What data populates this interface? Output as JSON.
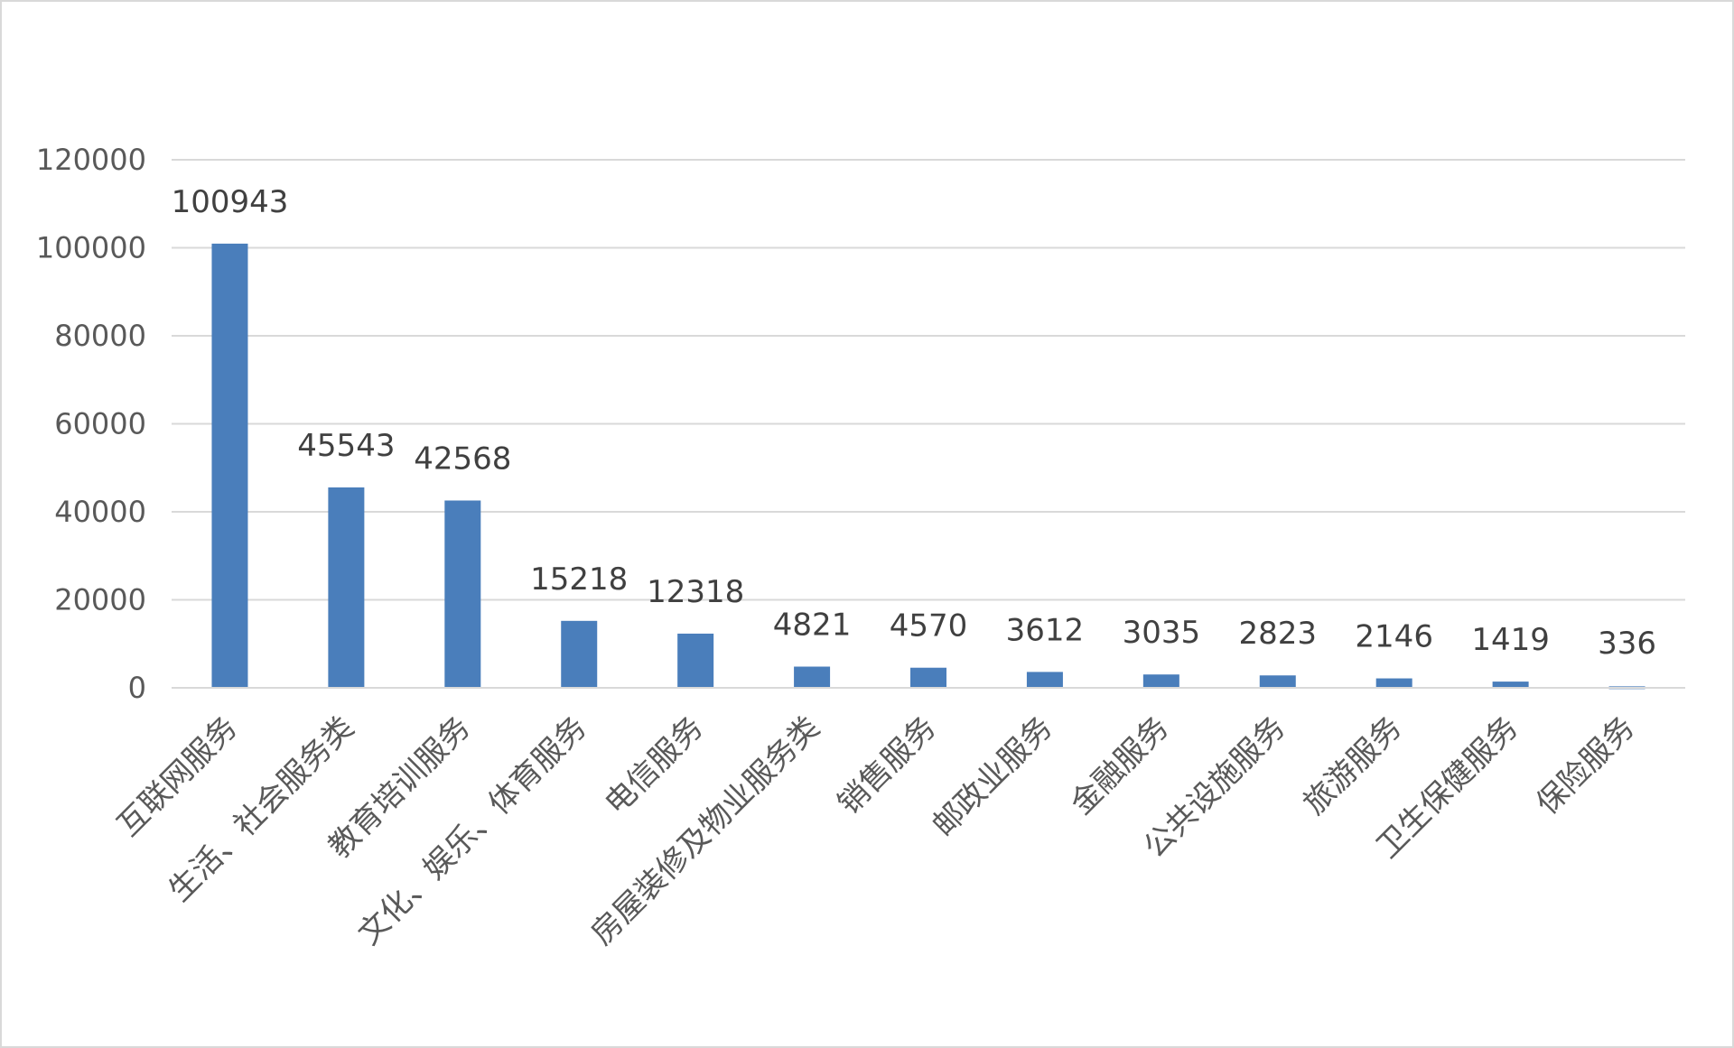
{
  "chart_data": {
    "type": "bar",
    "title": "",
    "xlabel": "",
    "ylabel": "",
    "categories": [
      "互联网服务",
      "生活、社会服务类",
      "教育培训服务",
      "文化、娱乐、体育服务",
      "电信服务",
      "房屋装修及物业服务类",
      "销售服务",
      "邮政业服务",
      "金融服务",
      "公共设施服务",
      "旅游服务",
      "卫生保健服务",
      "保险服务"
    ],
    "values": [
      100943,
      45543,
      42568,
      15218,
      12318,
      4821,
      4570,
      3612,
      3035,
      2823,
      2146,
      1419,
      336
    ],
    "data_labels": [
      "100943",
      "45543",
      "42568",
      "15218",
      "12318",
      "4821",
      "4570",
      "3612",
      "3035",
      "2823",
      "2146",
      "1419",
      "336"
    ],
    "ylim": [
      0,
      120000
    ],
    "yticks": [
      0,
      20000,
      40000,
      60000,
      80000,
      100000,
      120000
    ],
    "ytick_labels": [
      "0",
      "20000",
      "40000",
      "60000",
      "80000",
      "100000",
      "120000"
    ],
    "grid": true,
    "legend": "none",
    "bar_color": "#4a7ebb"
  }
}
